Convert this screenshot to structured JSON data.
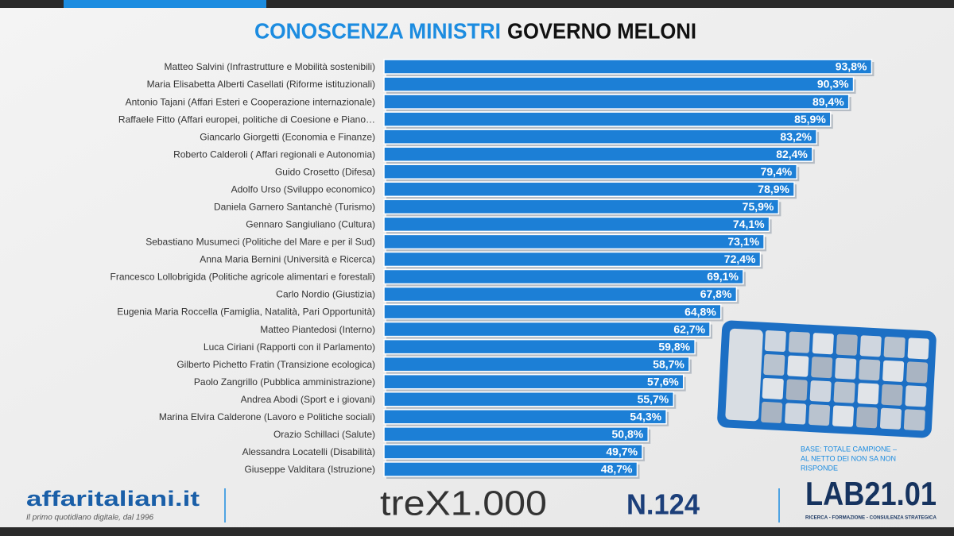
{
  "chart_data": {
    "type": "bar",
    "orientation": "horizontal",
    "title": "CONOSCENZA MINISTRI",
    "title_suffix": "GOVERNO MELONI",
    "categories": [
      "Matteo Salvini (Infrastrutture e Mobilità sostenibili)",
      "Maria Elisabetta Alberti Casellati (Riforme istituzionali)",
      "Antonio Tajani (Affari Esteri e Cooperazione internazionale)",
      "Raffaele Fitto (Affari europei, politiche di Coesione e Piano…",
      "Giancarlo Giorgetti (Economia e Finanze)",
      "Roberto Calderoli ( Affari regionali e Autonomia)",
      "Guido Crosetto (Difesa)",
      "Adolfo Urso (Sviluppo economico)",
      "Daniela Garnero Santanchè (Turismo)",
      "Gennaro Sangiuliano (Cultura)",
      "Sebastiano Musumeci (Politiche del Mare e per il Sud)",
      "Anna Maria Bernini (Università e Ricerca)",
      "Francesco Lollobrigida (Politiche agricole alimentari e forestali)",
      "Carlo Nordio (Giustizia)",
      "Eugenia Maria Roccella (Famiglia, Natalità, Pari Opportunità)",
      "Matteo Piantedosi (Interno)",
      "Luca Ciriani (Rapporti con il Parlamento)",
      "Gilberto Pichetto Fratin (Transizione ecologica)",
      "Paolo Zangrillo (Pubblica amministrazione)",
      "Andrea Abodi (Sport e i giovani)",
      "Marina Elvira Calderone (Lavoro e Politiche sociali)",
      "Orazio Schillaci (Salute)",
      "Alessandra Locatelli (Disabilità)",
      "Giuseppe Valditara (Istruzione)"
    ],
    "values": [
      93.8,
      90.3,
      89.4,
      85.9,
      83.2,
      82.4,
      79.4,
      78.9,
      75.9,
      74.1,
      73.1,
      72.4,
      69.1,
      67.8,
      64.8,
      62.7,
      59.8,
      58.7,
      57.6,
      55.7,
      54.3,
      50.8,
      49.7,
      48.7
    ],
    "value_labels": [
      "93,8%",
      "90,3%",
      "89,4%",
      "85,9%",
      "83,2%",
      "82,4%",
      "79,4%",
      "78,9%",
      "75,9%",
      "74,1%",
      "73,1%",
      "72,4%",
      "69,1%",
      "67,8%",
      "64,8%",
      "62,7%",
      "59,8%",
      "58,7%",
      "57,6%",
      "55,7%",
      "54,3%",
      "50,8%",
      "49,7%",
      "48,7%"
    ],
    "color": "#1c7fd6",
    "xlim": [
      0,
      100
    ]
  },
  "footer": {
    "base_note": [
      "BASE: TOTALE CAMPIONE –",
      "AL NETTO DEI NON SA NON",
      "RISPONDE"
    ],
    "brand": "affaritaliani.it",
    "brand_tagline": "Il primo quotidiano digitale, dal 1996",
    "partner": "treX1.000",
    "issue": "N.124",
    "lab": "LAB21.01",
    "lab_tagline": "RICERCA - FORMAZIONE - CONSULENZA STRATEGICA"
  }
}
